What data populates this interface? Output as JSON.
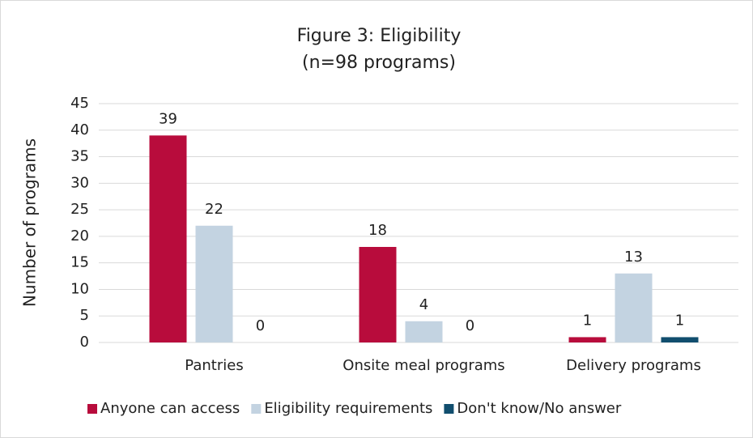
{
  "chart_data": {
    "type": "bar",
    "title": "Figure 3: Eligibility",
    "subtitle": "(n=98 programs)",
    "y_label": "Number of programs",
    "categories": [
      "Pantries",
      "Onsite meal programs",
      "Delivery programs"
    ],
    "series": [
      {
        "name": "Anyone can access",
        "color": "#b80c3c",
        "values": [
          39,
          18,
          1
        ]
      },
      {
        "name": "Eligibility requirements",
        "color": "#c3d3e1",
        "values": [
          22,
          4,
          13
        ]
      },
      {
        "name": "Don't know/No answer",
        "color": "#114e6e",
        "values": [
          0,
          0,
          1
        ]
      }
    ],
    "ylim": [
      0,
      45
    ],
    "yticks": [
      0,
      5,
      10,
      15,
      20,
      25,
      30,
      35,
      40,
      45
    ],
    "grid": true,
    "legend": "bottom"
  }
}
